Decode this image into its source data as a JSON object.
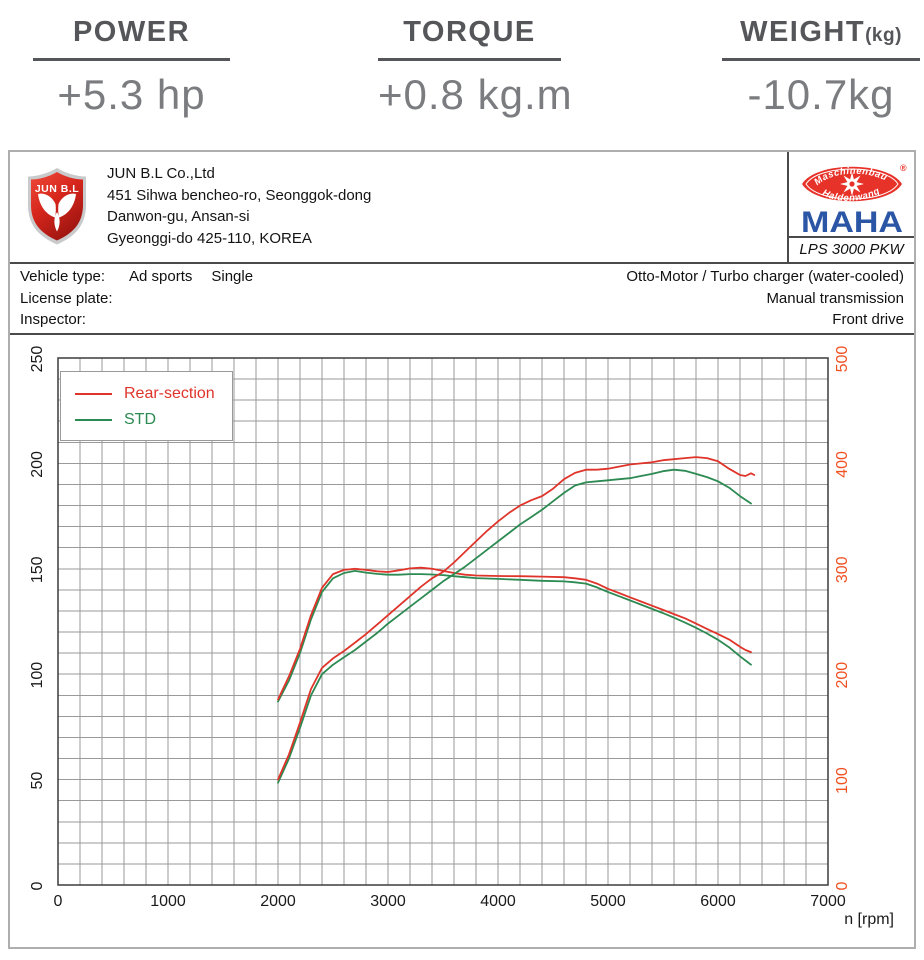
{
  "stats": {
    "power": {
      "label": "POWER",
      "value": "+5.3 hp"
    },
    "torque": {
      "label": "TORQUE",
      "value": "+0.8 kg.m"
    },
    "weight": {
      "label": "WEIGHT",
      "unit_label": "(kg)",
      "value": "-10.7kg"
    }
  },
  "report": {
    "company": {
      "logo_text": "JUN B.L",
      "name": "JUN B.L Co.,Ltd",
      "address_lines": [
        "451 Sihwa bencheo-ro, Seonggok-dong",
        "Danwon-gu, Ansan-si",
        "Gyeonggi-do 425-110, KOREA"
      ]
    },
    "device": {
      "brand": "MAHA",
      "curve_top": "Maschinenbau",
      "curve_bottom": "Haldenwang",
      "registered": "®",
      "model": "LPS 3000 PKW"
    },
    "info_left": [
      {
        "label": "Vehicle type:",
        "values": [
          "Ad sports",
          "Single"
        ]
      },
      {
        "label": "License plate:",
        "values": [
          "",
          ""
        ]
      },
      {
        "label": "Inspector:",
        "values": [
          "",
          ""
        ]
      }
    ],
    "info_right": [
      "Otto-Motor / Turbo charger (water-cooled)",
      "Manual transmission",
      "Front drive"
    ]
  },
  "chart_data": {
    "type": "line",
    "title": "",
    "xlabel": "n [rpm]",
    "ylabel_left": "",
    "ylabel_right": "",
    "xlim": [
      0,
      7000
    ],
    "ylim_left": [
      0,
      250
    ],
    "ylim_right": [
      0,
      500
    ],
    "x_ticks": [
      0,
      1000,
      2000,
      3000,
      4000,
      5000,
      6000,
      7000
    ],
    "y_left_ticks": [
      0,
      50,
      100,
      150,
      200,
      250
    ],
    "y_right_ticks": [
      0,
      100,
      200,
      300,
      400,
      500
    ],
    "x_minor_step": 200,
    "y_minor_step": 10,
    "grid": true,
    "legend_position": "top-left",
    "legend": [
      {
        "label": "Rear-section",
        "color": "#df342a"
      },
      {
        "label": "STD",
        "color": "#2c8a52"
      }
    ],
    "colors": {
      "grid": "#9a9a9a",
      "border": "#3c3c3c",
      "tick": "#1a1a1a",
      "right_axis": "#f05123"
    },
    "series": [
      {
        "id": "std-torque",
        "name": "STD torque",
        "color": "#2c8a52",
        "points": [
          [
            2000,
            87
          ],
          [
            2100,
            97
          ],
          [
            2200,
            110
          ],
          [
            2300,
            126
          ],
          [
            2400,
            139
          ],
          [
            2500,
            145.5
          ],
          [
            2600,
            148
          ],
          [
            2700,
            149
          ],
          [
            2800,
            148.2
          ],
          [
            2900,
            147.6
          ],
          [
            3000,
            147.2
          ],
          [
            3100,
            147.2
          ],
          [
            3200,
            147.5
          ],
          [
            3300,
            147.5
          ],
          [
            3400,
            147.3
          ],
          [
            3500,
            147
          ],
          [
            3600,
            146.5
          ],
          [
            3700,
            146
          ],
          [
            3800,
            145.6
          ],
          [
            4000,
            145.2
          ],
          [
            4200,
            144.8
          ],
          [
            4400,
            144.3
          ],
          [
            4600,
            144
          ],
          [
            4700,
            143.6
          ],
          [
            4800,
            143
          ],
          [
            4900,
            141.2
          ],
          [
            5000,
            139
          ],
          [
            5100,
            137
          ],
          [
            5200,
            135
          ],
          [
            5300,
            133
          ],
          [
            5400,
            131
          ],
          [
            5500,
            129
          ],
          [
            5600,
            126.8
          ],
          [
            5700,
            124.5
          ],
          [
            5800,
            122
          ],
          [
            5900,
            119.3
          ],
          [
            6000,
            116.3
          ],
          [
            6100,
            112.8
          ],
          [
            6200,
            108.5
          ],
          [
            6250,
            106.5
          ],
          [
            6300,
            104.5
          ]
        ]
      },
      {
        "id": "rear-torque",
        "name": "Rear-section torque",
        "color": "#df342a",
        "points": [
          [
            2000,
            88
          ],
          [
            2100,
            99
          ],
          [
            2200,
            112
          ],
          [
            2300,
            128
          ],
          [
            2400,
            141
          ],
          [
            2500,
            147.5
          ],
          [
            2600,
            149.5
          ],
          [
            2700,
            150
          ],
          [
            2800,
            149.5
          ],
          [
            2900,
            148.8
          ],
          [
            3000,
            148.5
          ],
          [
            3100,
            149.3
          ],
          [
            3200,
            150.2
          ],
          [
            3300,
            150.5
          ],
          [
            3400,
            150
          ],
          [
            3500,
            149
          ],
          [
            3600,
            148
          ],
          [
            3700,
            147.2
          ],
          [
            3800,
            146.8
          ],
          [
            4000,
            146.6
          ],
          [
            4200,
            146.5
          ],
          [
            4400,
            146.3
          ],
          [
            4600,
            146
          ],
          [
            4700,
            145.5
          ],
          [
            4800,
            144.8
          ],
          [
            4900,
            143
          ],
          [
            5000,
            140.5
          ],
          [
            5100,
            138.5
          ],
          [
            5200,
            136.5
          ],
          [
            5300,
            134.5
          ],
          [
            5400,
            132.5
          ],
          [
            5500,
            130.5
          ],
          [
            5600,
            128.5
          ],
          [
            5700,
            126.5
          ],
          [
            5800,
            124
          ],
          [
            5900,
            121.5
          ],
          [
            6000,
            119
          ],
          [
            6100,
            116.5
          ],
          [
            6200,
            113
          ],
          [
            6250,
            111.5
          ],
          [
            6300,
            110.5
          ]
        ]
      },
      {
        "id": "std-power",
        "name": "STD power",
        "color": "#2c8a52",
        "points": [
          [
            2000,
            48.5
          ],
          [
            2100,
            60
          ],
          [
            2200,
            74.5
          ],
          [
            2300,
            90
          ],
          [
            2400,
            100
          ],
          [
            2500,
            104.5
          ],
          [
            2600,
            108
          ],
          [
            2700,
            111.5
          ],
          [
            2800,
            115.5
          ],
          [
            2900,
            119.5
          ],
          [
            3000,
            124
          ],
          [
            3100,
            128
          ],
          [
            3200,
            132
          ],
          [
            3300,
            136
          ],
          [
            3400,
            140
          ],
          [
            3500,
            144
          ],
          [
            3600,
            147.5
          ],
          [
            3700,
            151
          ],
          [
            3800,
            155
          ],
          [
            3900,
            159
          ],
          [
            4000,
            163
          ],
          [
            4100,
            167
          ],
          [
            4200,
            171
          ],
          [
            4300,
            174.5
          ],
          [
            4400,
            178
          ],
          [
            4500,
            182
          ],
          [
            4600,
            186
          ],
          [
            4700,
            189.5
          ],
          [
            4800,
            191
          ],
          [
            4900,
            191.5
          ],
          [
            5000,
            192
          ],
          [
            5100,
            192.5
          ],
          [
            5200,
            193
          ],
          [
            5300,
            194
          ],
          [
            5400,
            195
          ],
          [
            5500,
            196.3
          ],
          [
            5600,
            197
          ],
          [
            5700,
            196.5
          ],
          [
            5800,
            195
          ],
          [
            5900,
            193.5
          ],
          [
            6000,
            191.5
          ],
          [
            6100,
            188.5
          ],
          [
            6200,
            184.5
          ],
          [
            6300,
            181
          ]
        ]
      },
      {
        "id": "rear-power",
        "name": "Rear-section power",
        "color": "#df342a",
        "points": [
          [
            2000,
            50
          ],
          [
            2100,
            62
          ],
          [
            2200,
            77
          ],
          [
            2300,
            93
          ],
          [
            2400,
            103
          ],
          [
            2500,
            107.5
          ],
          [
            2600,
            111
          ],
          [
            2700,
            115
          ],
          [
            2800,
            119
          ],
          [
            2900,
            123.5
          ],
          [
            3000,
            128
          ],
          [
            3100,
            132.5
          ],
          [
            3200,
            137
          ],
          [
            3300,
            141.5
          ],
          [
            3400,
            145.5
          ],
          [
            3500,
            148.5
          ],
          [
            3600,
            153
          ],
          [
            3700,
            158
          ],
          [
            3800,
            163
          ],
          [
            3900,
            168
          ],
          [
            4000,
            172.5
          ],
          [
            4100,
            176.5
          ],
          [
            4200,
            180
          ],
          [
            4300,
            182.5
          ],
          [
            4400,
            184.5
          ],
          [
            4500,
            188
          ],
          [
            4600,
            192.5
          ],
          [
            4700,
            195.5
          ],
          [
            4800,
            197
          ],
          [
            4900,
            197
          ],
          [
            5000,
            197.5
          ],
          [
            5100,
            198.5
          ],
          [
            5200,
            199.5
          ],
          [
            5300,
            200
          ],
          [
            5400,
            200.5
          ],
          [
            5500,
            201.5
          ],
          [
            5600,
            202
          ],
          [
            5700,
            202.5
          ],
          [
            5800,
            203
          ],
          [
            5900,
            202.5
          ],
          [
            6000,
            201
          ],
          [
            6100,
            197.5
          ],
          [
            6150,
            196
          ],
          [
            6200,
            194.5
          ],
          [
            6250,
            194
          ],
          [
            6300,
            195.3
          ],
          [
            6330,
            194.5
          ]
        ]
      }
    ]
  }
}
